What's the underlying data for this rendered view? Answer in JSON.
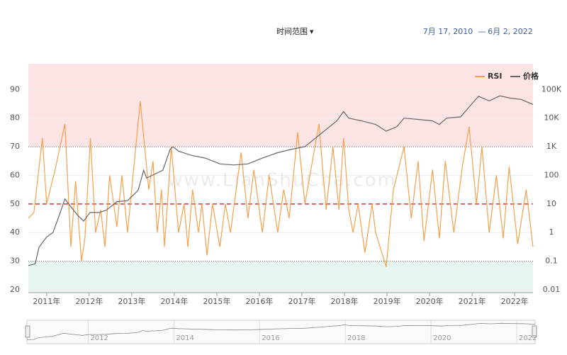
{
  "header": {
    "range_button": "时间范围",
    "date_from": "7月 17, 2010",
    "date_sep": "—",
    "date_to": "6月 2, 2022"
  },
  "watermark": "www.LianShuCha.com",
  "chart_data": {
    "type": "line",
    "xlim": [
      2010.57,
      2022.43
    ],
    "xticks": [
      {
        "value": 2011,
        "label": "2011年"
      },
      {
        "value": 2012,
        "label": "2012年"
      },
      {
        "value": 2013,
        "label": "2013年"
      },
      {
        "value": 2014,
        "label": "2014年"
      },
      {
        "value": 2015,
        "label": "2015年"
      },
      {
        "value": 2016,
        "label": "2016年"
      },
      {
        "value": 2017,
        "label": "2017年"
      },
      {
        "value": 2018,
        "label": "2018年"
      },
      {
        "value": 2019,
        "label": "2019年"
      },
      {
        "value": 2020,
        "label": "2020年"
      },
      {
        "value": 2021,
        "label": "2021年"
      },
      {
        "value": 2022,
        "label": "2022年"
      }
    ],
    "ylim": [
      19,
      99
    ],
    "yticks": [
      20,
      30,
      40,
      50,
      60,
      70,
      80,
      90
    ],
    "y2lim": [
      0.0079,
      794000
    ],
    "y2log": true,
    "y2ticks": [
      0.01,
      0.1,
      1,
      10,
      100,
      {
        "value": 1000,
        "label": "1K"
      },
      {
        "value": 10000,
        "label": "10K"
      },
      {
        "value": 100000,
        "label": "100K"
      }
    ],
    "levels": {
      "overbought": 70,
      "midline": 50,
      "oversold": 30
    },
    "legend": "top-right",
    "series": [
      {
        "name": "RSI",
        "color": "#f5a04a",
        "x": [
          2010.57,
          2010.7,
          2010.9,
          2011.0,
          2011.2,
          2011.43,
          2011.57,
          2011.68,
          2011.82,
          2011.9,
          2012.03,
          2012.15,
          2012.27,
          2012.37,
          2012.48,
          2012.65,
          2012.77,
          2012.9,
          2013.2,
          2013.4,
          2013.5,
          2013.6,
          2013.7,
          2013.77,
          2013.93,
          2014.1,
          2014.23,
          2014.32,
          2014.43,
          2014.57,
          2014.65,
          2014.77,
          2014.9,
          2015.07,
          2015.2,
          2015.32,
          2015.57,
          2015.73,
          2015.87,
          2016.07,
          2016.23,
          2016.43,
          2016.57,
          2016.7,
          2016.9,
          2017.07,
          2017.4,
          2017.57,
          2017.73,
          2017.87,
          2017.98,
          2018.1,
          2018.2,
          2018.32,
          2018.48,
          2018.65,
          2018.73,
          2018.98,
          2019.15,
          2019.4,
          2019.57,
          2019.73,
          2019.87,
          2020.07,
          2020.23,
          2020.37,
          2020.57,
          2020.77,
          2020.93,
          2021.1,
          2021.23,
          2021.4,
          2021.57,
          2021.73,
          2021.87,
          2022.07,
          2022.27,
          2022.43
        ],
        "values": [
          45,
          47,
          73,
          50,
          62,
          78,
          35,
          58,
          30,
          38,
          73,
          40,
          48,
          35,
          60,
          42,
          60,
          40,
          86,
          55,
          65,
          40,
          55,
          35,
          70,
          40,
          50,
          35,
          55,
          40,
          50,
          32,
          50,
          35,
          50,
          40,
          68,
          45,
          62,
          40,
          60,
          40,
          55,
          45,
          75,
          50,
          78,
          48,
          70,
          48,
          73,
          48,
          40,
          50,
          33,
          50,
          40,
          28,
          55,
          70,
          45,
          65,
          37,
          62,
          38,
          65,
          40,
          63,
          77,
          50,
          70,
          40,
          60,
          38,
          63,
          36,
          55,
          35
        ]
      },
      {
        "name": "价格",
        "color": "#666666",
        "axis": "y2",
        "x": [
          2010.57,
          2010.73,
          2010.82,
          2011.0,
          2011.15,
          2011.32,
          2011.43,
          2011.57,
          2011.73,
          2011.87,
          2012.02,
          2012.23,
          2012.4,
          2012.65,
          2012.9,
          2013.15,
          2013.28,
          2013.35,
          2013.48,
          2013.73,
          2013.9,
          2013.97,
          2014.1,
          2014.4,
          2014.73,
          2015.07,
          2015.4,
          2015.73,
          2016.07,
          2016.4,
          2016.73,
          2017.07,
          2017.32,
          2017.57,
          2017.82,
          2017.98,
          2018.1,
          2018.4,
          2018.73,
          2018.98,
          2019.23,
          2019.4,
          2019.73,
          2020.07,
          2020.23,
          2020.4,
          2020.73,
          2020.98,
          2021.15,
          2021.4,
          2021.65,
          2021.9,
          2022.15,
          2022.43
        ],
        "values": [
          0.07,
          0.08,
          0.3,
          0.7,
          1,
          5,
          15,
          8,
          4,
          2.5,
          5,
          5,
          6,
          12,
          13,
          30,
          150,
          80,
          100,
          150,
          800,
          1000,
          700,
          500,
          400,
          250,
          230,
          250,
          400,
          600,
          800,
          1000,
          2000,
          4000,
          8000,
          17000,
          10000,
          8000,
          6000,
          3500,
          5000,
          10000,
          9000,
          8000,
          6000,
          10000,
          11000,
          30000,
          58000,
          40000,
          60000,
          50000,
          45000,
          30000
        ]
      }
    ],
    "navigator": {
      "xticks": [
        2012,
        2014,
        2016,
        2018,
        2020,
        2022
      ]
    }
  }
}
